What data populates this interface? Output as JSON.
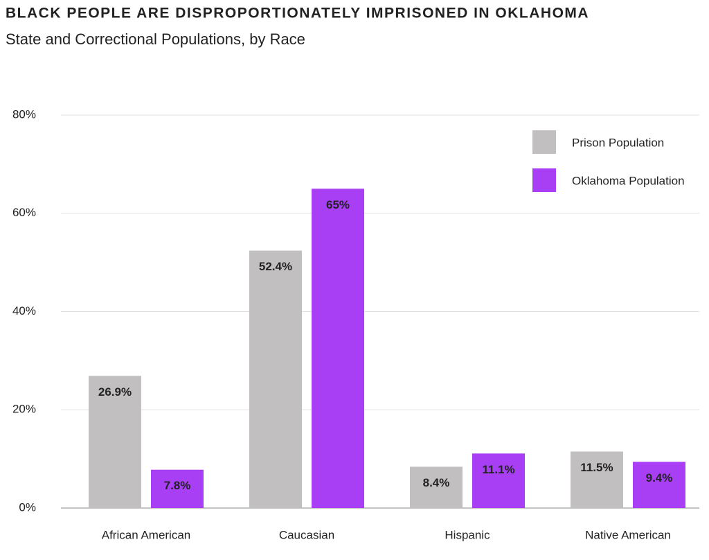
{
  "chart_data": {
    "type": "bar",
    "title": "BLACK PEOPLE ARE DISPROPORTIONATELY IMPRISONED IN OKLAHOMA",
    "subtitle": "State and Correctional Populations, by Race",
    "categories": [
      "African American",
      "Caucasian",
      "Hispanic",
      "Native American"
    ],
    "series": [
      {
        "name": "Prison Population",
        "color": "#c1bfc0",
        "label_color": "#555555",
        "values": [
          26.9,
          52.4,
          8.4,
          11.5
        ],
        "value_labels": [
          "26.9%",
          "52.4%",
          "8.4%",
          "11.5%"
        ]
      },
      {
        "name": "Oklahoma Population",
        "color": "#a93ff5",
        "label_color": "#ffffff",
        "values": [
          7.8,
          65,
          11.1,
          9.4
        ],
        "value_labels": [
          "7.8%",
          "65%",
          "11.1%",
          "9.4%"
        ]
      }
    ],
    "ylim": [
      0,
      80
    ],
    "yticks": [
      {
        "value": 0,
        "label": "0%"
      },
      {
        "value": 20,
        "label": "20%"
      },
      {
        "value": 40,
        "label": "40%"
      },
      {
        "value": 60,
        "label": "60%"
      },
      {
        "value": 80,
        "label": "80%"
      }
    ],
    "grid": true,
    "legend_position": "upper right"
  }
}
